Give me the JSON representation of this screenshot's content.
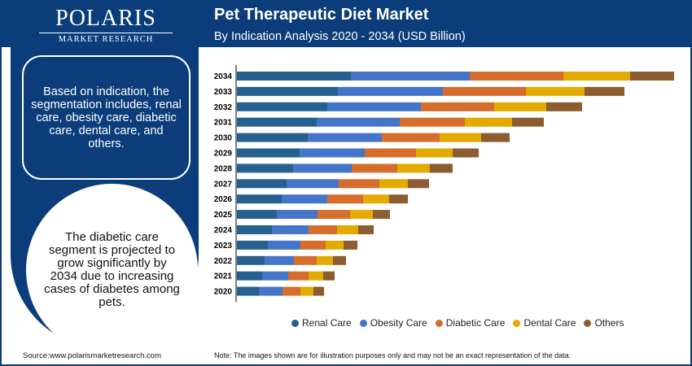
{
  "brand": {
    "name": "POLARIS",
    "sub": "MARKET RESEARCH"
  },
  "header": {
    "title": "Pet Therapeutic Diet Market",
    "subtitle": "By Indication Analysis 2020 - 2034 (USD Billion)"
  },
  "panel": {
    "box_text": "Based on indication, the segmentation includes, renal care, obesity care, diabetic care, dental care, and others.",
    "circle_text": "The diabetic care segment is projected to grow significantly by 2034 due to increasing cases of diabetes among pets."
  },
  "footer": {
    "source": "Source:www.polarismarketresearch.com",
    "note": "Note: The images shown are for illustration purposes only and may not be an exact representation of the data."
  },
  "chart_data": {
    "type": "bar",
    "orientation": "horizontal-stacked",
    "title": "Pet Therapeutic Diet Market",
    "subtitle": "By Indication Analysis 2020 - 2034 (USD Billion)",
    "value_axis_labels": "none",
    "grid": false,
    "legend_position": "bottom",
    "categories": [
      "2034",
      "2033",
      "2032",
      "2031",
      "2030",
      "2029",
      "2028",
      "2027",
      "2026",
      "2025",
      "2024",
      "2023",
      "2022",
      "2021",
      "2020"
    ],
    "series": [
      {
        "name": "Renal Care",
        "color": "#25608f",
        "values": [
          140,
          124,
          111,
          98,
          87,
          77,
          69,
          61,
          55,
          49,
          43,
          38,
          34,
          31,
          27
        ]
      },
      {
        "name": "Obesity Care",
        "color": "#4575c8",
        "values": [
          146,
          129,
          115,
          102,
          91,
          80,
          72,
          64,
          56,
          50,
          45,
          40,
          36,
          32,
          29
        ]
      },
      {
        "name": "Diabetic Care",
        "color": "#d56e2c",
        "values": [
          115,
          102,
          90,
          80,
          71,
          63,
          56,
          50,
          44,
          40,
          35,
          31,
          28,
          25,
          22
        ]
      },
      {
        "name": "Dental Care",
        "color": "#e3aa00",
        "values": [
          82,
          72,
          64,
          58,
          51,
          45,
          40,
          35,
          32,
          28,
          26,
          22,
          20,
          18,
          16
        ]
      },
      {
        "name": "Others",
        "color": "#8b5d30",
        "values": [
          54,
          49,
          44,
          39,
          35,
          32,
          28,
          26,
          23,
          21,
          19,
          17,
          16,
          14,
          13
        ]
      }
    ]
  }
}
